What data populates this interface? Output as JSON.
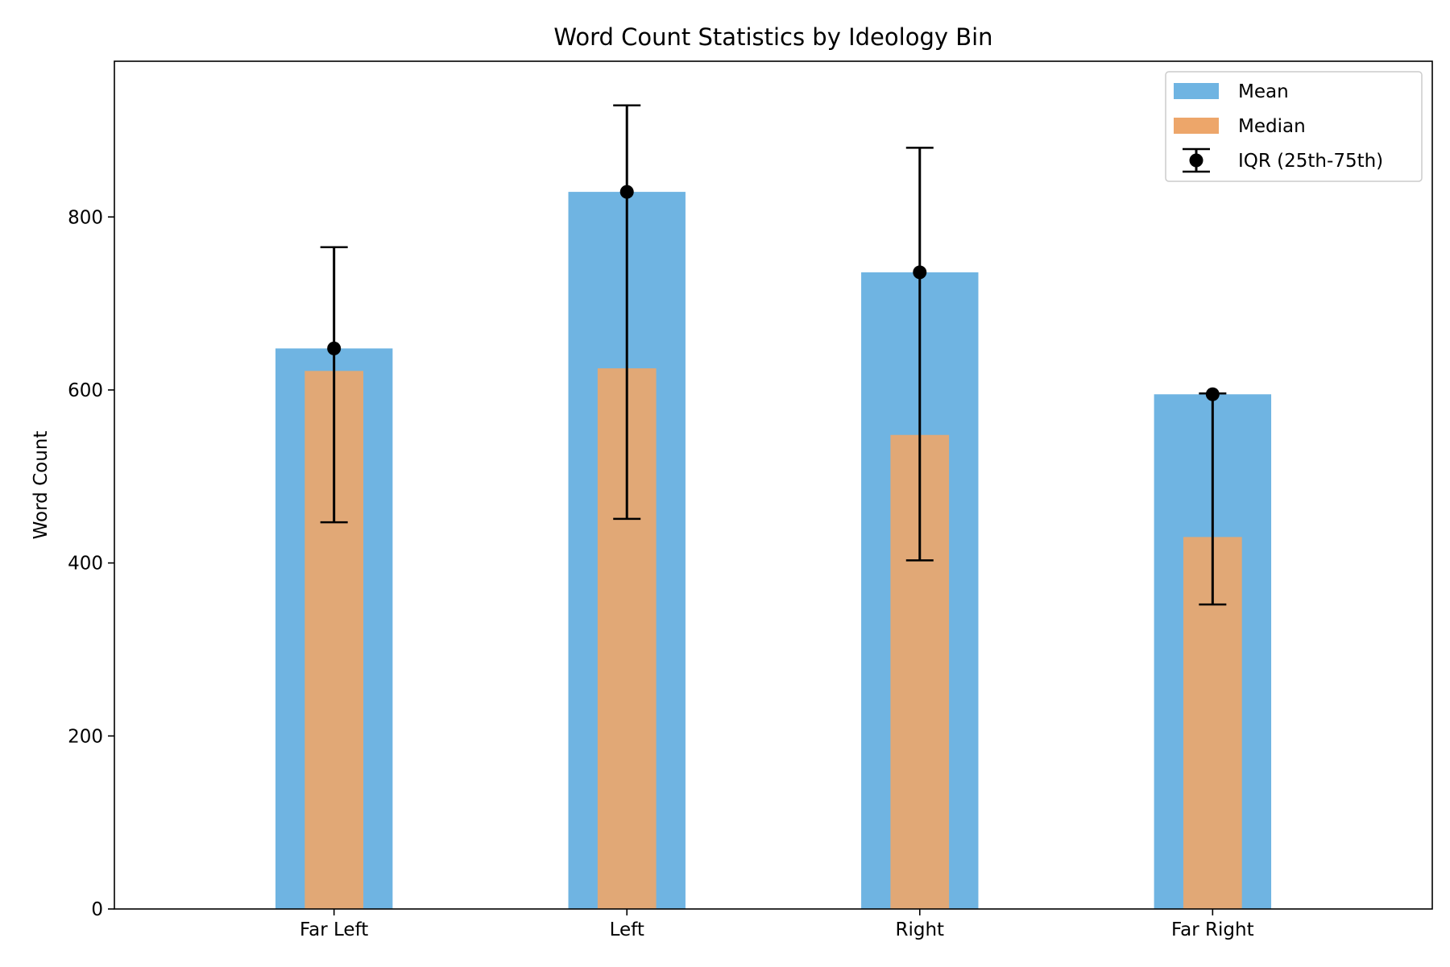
{
  "chart_data": {
    "type": "bar",
    "title": "Word Count Statistics by Ideology Bin",
    "xlabel": "",
    "ylabel": "Word Count",
    "categories": [
      "Far Left",
      "Left",
      "Right",
      "Far Right"
    ],
    "ylim": [
      0,
      980
    ],
    "yticks": [
      0,
      200,
      400,
      600,
      800
    ],
    "grid": false,
    "legend_position": "top-right",
    "series": [
      {
        "name": "Mean",
        "kind": "bar",
        "color": "#6fb4e2",
        "values": [
          648,
          829,
          736,
          595
        ]
      },
      {
        "name": "Median",
        "kind": "bar",
        "color": "#eda66a",
        "values": [
          622,
          625,
          548,
          430
        ]
      }
    ],
    "error_bars": {
      "name": "IQR (25th-75th)",
      "color": "#000000",
      "center": [
        648,
        829,
        736,
        595
      ],
      "low": [
        447,
        451,
        403,
        352
      ],
      "high": [
        765,
        929,
        880,
        596
      ]
    }
  }
}
